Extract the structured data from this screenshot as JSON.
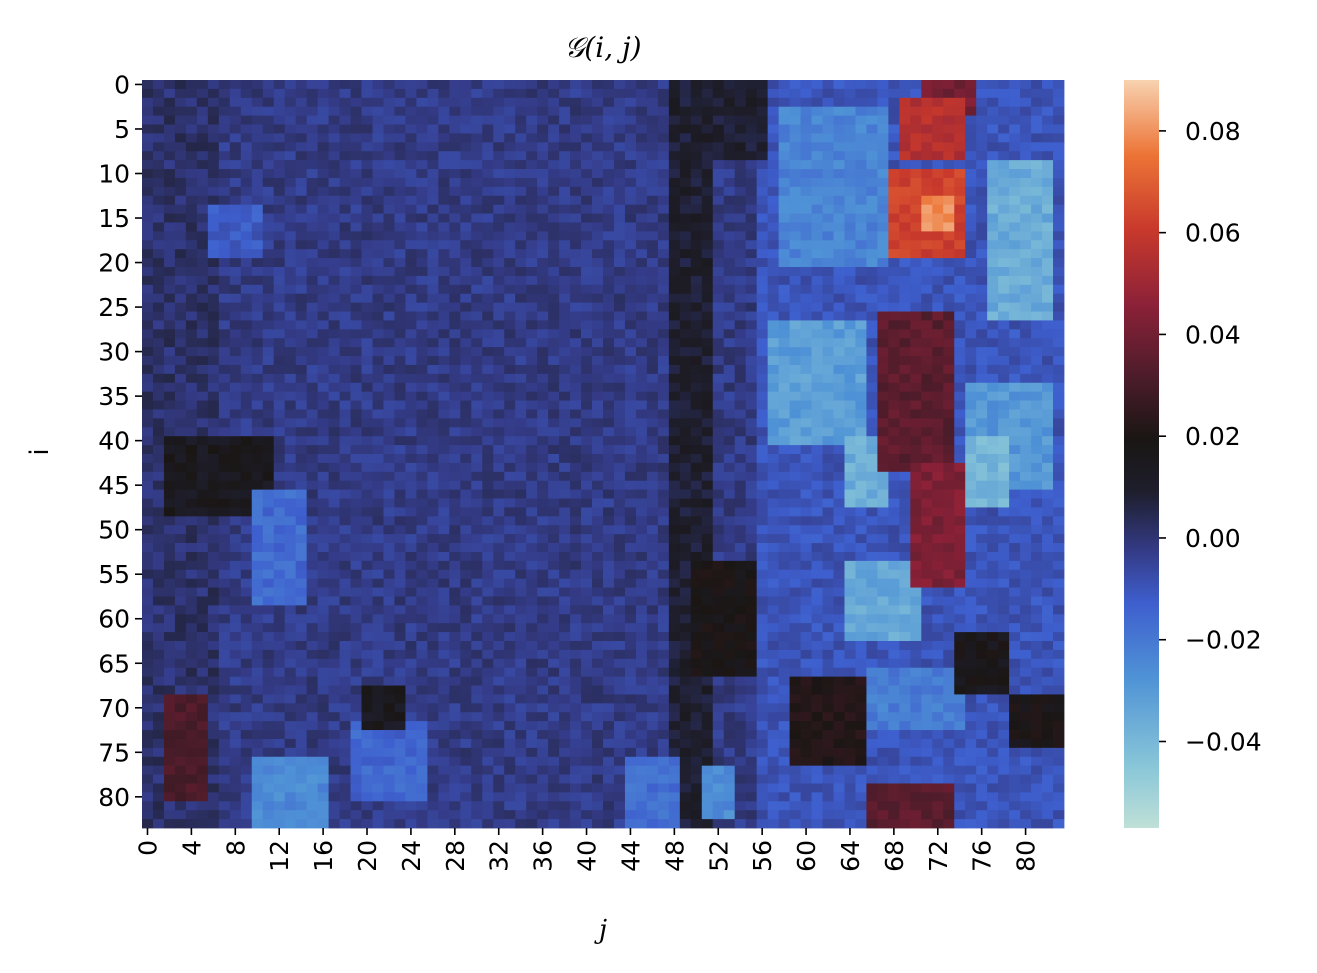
{
  "chart_data": {
    "type": "heatmap",
    "title": "𝒢(i, j)",
    "xlabel": "j",
    "ylabel": "i",
    "n_rows": 84,
    "n_cols": 84,
    "x_tick_labels": [
      "0",
      "4",
      "8",
      "12",
      "16",
      "20",
      "24",
      "28",
      "32",
      "36",
      "40",
      "44",
      "48",
      "52",
      "56",
      "60",
      "64",
      "68",
      "72",
      "76",
      "80"
    ],
    "y_tick_labels": [
      "0",
      "5",
      "10",
      "15",
      "20",
      "25",
      "30",
      "35",
      "40",
      "45",
      "50",
      "55",
      "60",
      "65",
      "70",
      "75",
      "80"
    ],
    "colorbar": {
      "vmin": -0.057,
      "vmax": 0.09,
      "center": 0.0,
      "colormap": "icefire",
      "tick_labels": [
        "0.08",
        "0.06",
        "0.04",
        "0.02",
        "0.00",
        "−0.02",
        "−0.04"
      ],
      "tick_values": [
        0.08,
        0.06,
        0.04,
        0.02,
        0.0,
        -0.02,
        -0.04
      ]
    },
    "background_value": -0.006,
    "regions": [
      {
        "row": [
          0,
          83
        ],
        "col": [
          0,
          6
        ],
        "value": -0.003
      },
      {
        "row": [
          40,
          48
        ],
        "col": [
          2,
          11
        ],
        "value": 0.008
      },
      {
        "row": [
          69,
          80
        ],
        "col": [
          2,
          5
        ],
        "value": 0.03
      },
      {
        "row": [
          46,
          58
        ],
        "col": [
          10,
          14
        ],
        "value": -0.019
      },
      {
        "row": [
          14,
          19
        ],
        "col": [
          6,
          10
        ],
        "value": -0.015
      },
      {
        "row": [
          76,
          83
        ],
        "col": [
          10,
          16
        ],
        "value": -0.027
      },
      {
        "row": [
          72,
          80
        ],
        "col": [
          19,
          25
        ],
        "value": -0.018
      },
      {
        "row": [
          68,
          72
        ],
        "col": [
          20,
          23
        ],
        "value": 0.008
      },
      {
        "row": [
          0,
          83
        ],
        "col": [
          48,
          51
        ],
        "value": 0.004
      },
      {
        "row": [
          54,
          66
        ],
        "col": [
          50,
          55
        ],
        "value": 0.012
      },
      {
        "row": [
          76,
          83
        ],
        "col": [
          44,
          48
        ],
        "value": -0.02
      },
      {
        "row": [
          77,
          82
        ],
        "col": [
          51,
          53
        ],
        "value": -0.028
      },
      {
        "row": [
          0,
          83
        ],
        "col": [
          56,
          84
        ],
        "value": -0.013
      },
      {
        "row": [
          0,
          8
        ],
        "col": [
          52,
          56
        ],
        "value": 0.004
      },
      {
        "row": [
          3,
          20
        ],
        "col": [
          58,
          67
        ],
        "value": -0.026
      },
      {
        "row": [
          27,
          40
        ],
        "col": [
          57,
          65
        ],
        "value": -0.033
      },
      {
        "row": [
          40,
          47
        ],
        "col": [
          64,
          67
        ],
        "value": -0.038
      },
      {
        "row": [
          54,
          62
        ],
        "col": [
          64,
          70
        ],
        "value": -0.036
      },
      {
        "row": [
          66,
          72
        ],
        "col": [
          66,
          74
        ],
        "value": -0.024
      },
      {
        "row": [
          9,
          26
        ],
        "col": [
          77,
          82
        ],
        "value": -0.037
      },
      {
        "row": [
          34,
          45
        ],
        "col": [
          75,
          82
        ],
        "value": -0.031
      },
      {
        "row": [
          40,
          47
        ],
        "col": [
          75,
          78
        ],
        "value": -0.04
      },
      {
        "row": [
          0,
          3
        ],
        "col": [
          71,
          75
        ],
        "value": 0.04
      },
      {
        "row": [
          2,
          8
        ],
        "col": [
          69,
          74
        ],
        "value": 0.055
      },
      {
        "row": [
          10,
          19
        ],
        "col": [
          68,
          74
        ],
        "value": 0.062
      },
      {
        "row": [
          13,
          16
        ],
        "col": [
          71,
          73
        ],
        "value": 0.08
      },
      {
        "row": [
          26,
          43
        ],
        "col": [
          67,
          73
        ],
        "value": 0.034
      },
      {
        "row": [
          43,
          56
        ],
        "col": [
          70,
          74
        ],
        "value": 0.042
      },
      {
        "row": [
          67,
          76
        ],
        "col": [
          59,
          65
        ],
        "value": 0.016
      },
      {
        "row": [
          79,
          83
        ],
        "col": [
          66,
          73
        ],
        "value": 0.034
      },
      {
        "row": [
          62,
          68
        ],
        "col": [
          74,
          78
        ],
        "value": 0.01
      },
      {
        "row": [
          69,
          74
        ],
        "col": [
          79,
          83
        ],
        "value": 0.012
      }
    ]
  }
}
